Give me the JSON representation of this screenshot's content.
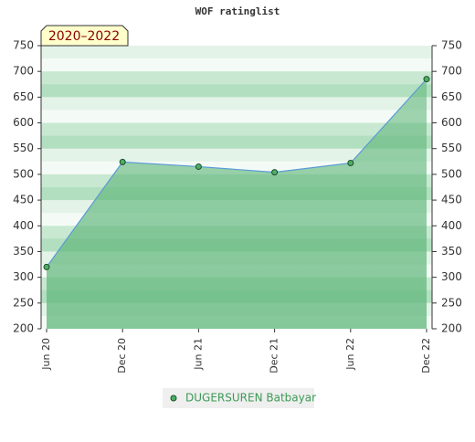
{
  "chart_data": {
    "type": "area",
    "title": "WOF ratinglist",
    "annotation": "2020–2022",
    "categories": [
      "Jun 20",
      "Dec 20",
      "Jun 21",
      "Dec 21",
      "Jun 22",
      "Dec 22"
    ],
    "series": [
      {
        "name": "DUGERSUREN Batbayar",
        "color": "#5b9bd5",
        "values": [
          320,
          524,
          515,
          504,
          522,
          685
        ]
      }
    ],
    "ylim": [
      200,
      750
    ],
    "yticks": [
      200,
      250,
      300,
      350,
      400,
      450,
      500,
      550,
      600,
      650,
      700,
      750
    ]
  }
}
